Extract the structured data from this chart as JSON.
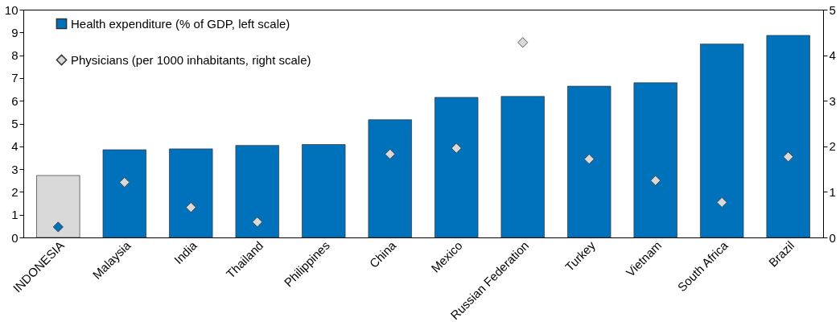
{
  "chart_data": {
    "type": "bar",
    "categories": [
      "INDONESIA",
      "Malaysia",
      "India",
      "Thailand",
      "Philippines",
      "China",
      "Mexico",
      "Russian Federation",
      "Turkey",
      "Vietnam",
      "South Africa",
      "Brazil"
    ],
    "series": [
      {
        "name": "Health expenditure (% of GDP, left scale)",
        "color": "#0072bc",
        "colors": [
          "#d9d9d9",
          "#0072bc",
          "#0072bc",
          "#0072bc",
          "#0072bc",
          "#0072bc",
          "#0072bc",
          "#0072bc",
          "#0072bc",
          "#0072bc",
          "#0072bc",
          "#0072bc"
        ],
        "values": [
          2.72,
          3.85,
          3.89,
          4.04,
          4.08,
          5.17,
          6.15,
          6.19,
          6.64,
          6.79,
          8.49,
          8.87
        ]
      },
      {
        "name": "Physicians (per 1000 inhabitants, right scale)",
        "type": "scatter",
        "axis": "y2",
        "marker": "diamond",
        "color": "#d9d9d9",
        "colors": [
          "#0072bc",
          "#d9d9d9",
          "#d9d9d9",
          "#d9d9d9",
          "#d9d9d9",
          "#d9d9d9",
          "#d9d9d9",
          "#d9d9d9",
          "#d9d9d9",
          "#d9d9d9",
          "#d9d9d9",
          "#d9d9d9"
        ],
        "values": [
          0.23,
          1.21,
          0.66,
          0.34,
          null,
          1.83,
          1.96,
          4.28,
          1.72,
          1.25,
          0.77,
          1.77
        ]
      }
    ],
    "ylim": [
      0,
      10
    ],
    "yticks": [
      0,
      1,
      2,
      3,
      4,
      5,
      6,
      7,
      8,
      9,
      10
    ],
    "y2lim": [
      0,
      5
    ],
    "y2ticks": [
      0,
      1,
      2,
      3,
      4,
      5
    ],
    "grid": false,
    "legend": "top left"
  }
}
